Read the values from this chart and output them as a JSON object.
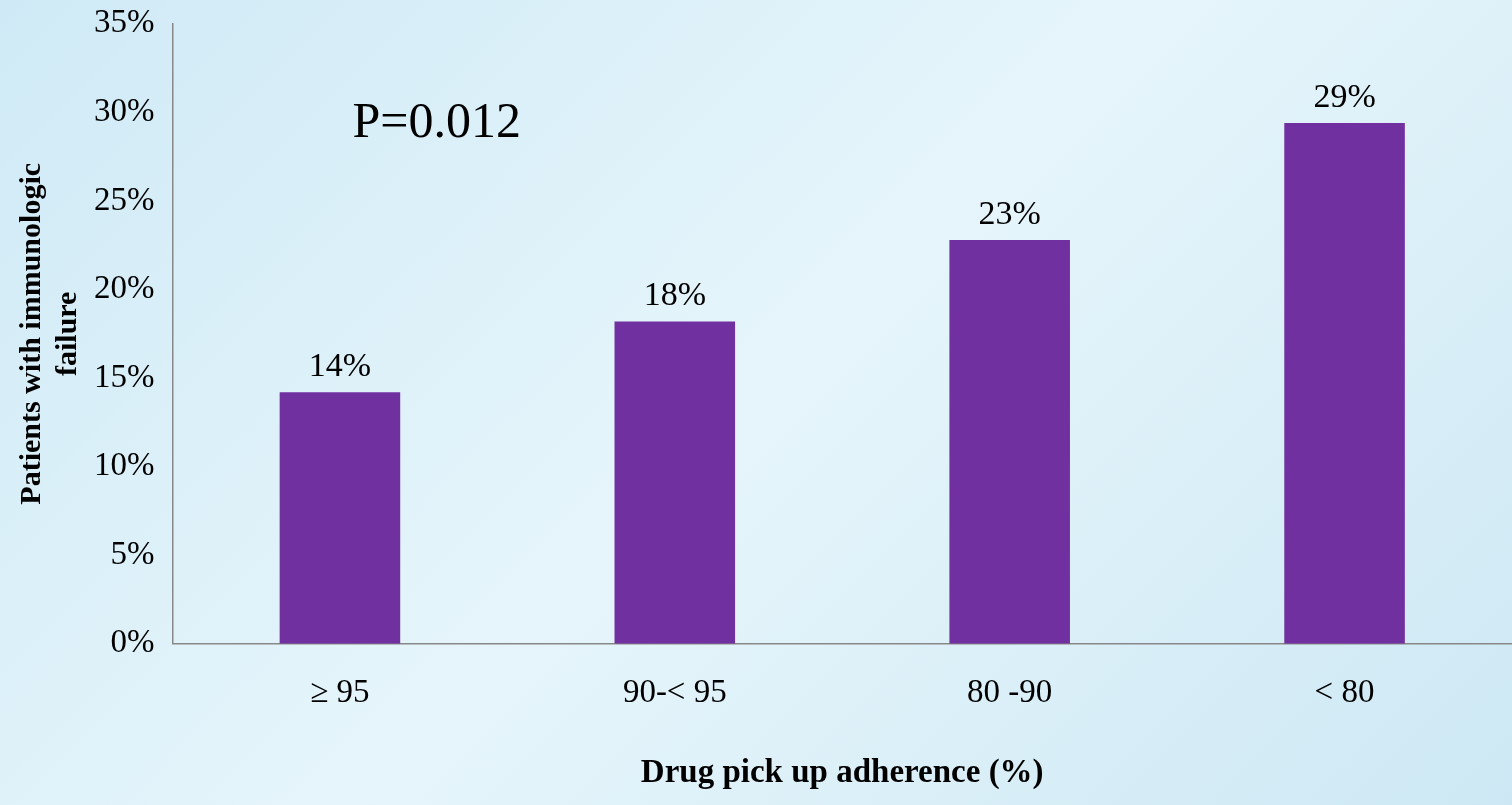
{
  "chart_data": {
    "type": "bar",
    "xlabel": "Drug pick up adherence (%)",
    "ylabel": "Patients with immunologic failure",
    "categories": [
      "≥ 95",
      "90-< 95",
      "80 -90",
      "< 80"
    ],
    "values": [
      14.2,
      18.2,
      22.8,
      29.4
    ],
    "value_labels": [
      "14%",
      "18%",
      "23%",
      "29%"
    ],
    "color": "#7030a0",
    "ylim": [
      0,
      35
    ],
    "yticks": [
      {
        "value": 0,
        "label": "0%"
      },
      {
        "value": 5,
        "label": "5%"
      },
      {
        "value": 10,
        "label": "10%"
      },
      {
        "value": 15,
        "label": "15%"
      },
      {
        "value": 20,
        "label": "20%"
      },
      {
        "value": 25,
        "label": "25%"
      },
      {
        "value": 30,
        "label": "30%"
      },
      {
        "value": 35,
        "label": "35%"
      }
    ],
    "annotations": [
      "P=0.012"
    ],
    "grid": false,
    "legend": false
  }
}
